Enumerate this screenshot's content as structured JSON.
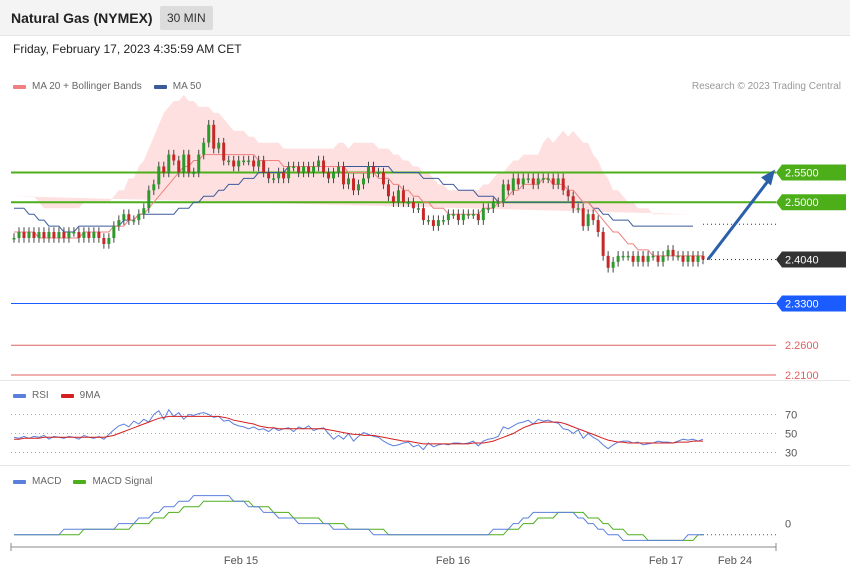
{
  "header": {
    "title": "Natural Gas (NYMEX)",
    "timeframe": "30 MIN"
  },
  "datetime": "Friday, February 17, 2023 4:35:59 AM CET",
  "credit": "Research © 2023 Trading Central",
  "colors": {
    "bollinger_fill": "#ffe0e0",
    "ma20": "#f08080",
    "ma50": "#3a5b9a",
    "candle_up": "#2e9a2e",
    "candle_down": "#c62828",
    "resistance": "#4caf1a",
    "support": "#1a5cff",
    "target": "#e06060",
    "arrow": "#2c5faa",
    "rsi": "#5b7fdd",
    "rsi_ma": "#d42020",
    "macd": "#5b7fdd",
    "macd_signal": "#4caf1a"
  },
  "legend": {
    "ma20": "MA 20 + Bollinger Bands",
    "ma50": "MA 50"
  },
  "levels": [
    {
      "value": 2.55,
      "label": "2.5500",
      "type": "resistance"
    },
    {
      "value": 2.5,
      "label": "2.5000",
      "type": "resistance"
    },
    {
      "value": 2.404,
      "label": "2.4040",
      "type": "last"
    },
    {
      "value": 2.33,
      "label": "2.3300",
      "type": "support"
    },
    {
      "value": 2.26,
      "label": "2.2600",
      "type": "target"
    },
    {
      "value": 2.21,
      "label": "2.2100",
      "type": "target"
    }
  ],
  "rsi_panel": {
    "legend_rsi": "RSI",
    "legend_ma": "9MA",
    "ticks": [
      "70",
      "50",
      "30"
    ]
  },
  "macd_panel": {
    "legend_macd": "MACD",
    "legend_signal": "MACD Signal",
    "ticks": [
      "0"
    ]
  },
  "chart_data": {
    "type": "candlestick",
    "x_ticks": [
      "Feb 15",
      "Feb 16",
      "Feb 17",
      "Feb 24"
    ],
    "y_range": [
      2.205,
      2.68
    ],
    "projection": {
      "from": 2.404,
      "to": 2.55
    },
    "closes": [
      2.44,
      2.45,
      2.44,
      2.45,
      2.44,
      2.45,
      2.44,
      2.45,
      2.44,
      2.45,
      2.44,
      2.45,
      2.45,
      2.44,
      2.45,
      2.44,
      2.45,
      2.44,
      2.43,
      2.44,
      2.46,
      2.47,
      2.48,
      2.47,
      2.47,
      2.48,
      2.49,
      2.52,
      2.53,
      2.56,
      2.55,
      2.58,
      2.57,
      2.55,
      2.58,
      2.55,
      2.55,
      2.58,
      2.6,
      2.63,
      2.59,
      2.6,
      2.57,
      2.57,
      2.56,
      2.57,
      2.57,
      2.57,
      2.56,
      2.57,
      2.55,
      2.54,
      2.54,
      2.55,
      2.54,
      2.56,
      2.56,
      2.55,
      2.56,
      2.55,
      2.56,
      2.57,
      2.55,
      2.54,
      2.55,
      2.56,
      2.53,
      2.54,
      2.52,
      2.53,
      2.54,
      2.56,
      2.55,
      2.55,
      2.53,
      2.51,
      2.5,
      2.52,
      2.5,
      2.5,
      2.49,
      2.49,
      2.47,
      2.47,
      2.46,
      2.47,
      2.47,
      2.48,
      2.48,
      2.47,
      2.48,
      2.48,
      2.48,
      2.47,
      2.49,
      2.49,
      2.5,
      2.5,
      2.53,
      2.52,
      2.54,
      2.53,
      2.54,
      2.54,
      2.53,
      2.54,
      2.54,
      2.54,
      2.53,
      2.54,
      2.52,
      2.51,
      2.49,
      2.49,
      2.46,
      2.48,
      2.47,
      2.45,
      2.41,
      2.39,
      2.4,
      2.41,
      2.41,
      2.41,
      2.4,
      2.41,
      2.4,
      2.41,
      2.41,
      2.4,
      2.41,
      2.42,
      2.41,
      2.41,
      2.4,
      2.41,
      2.4,
      2.41,
      2.404
    ],
    "ma50": [
      2.49,
      2.49,
      2.49,
      2.48,
      2.48,
      2.47,
      2.47,
      2.46,
      2.46,
      2.46,
      2.45,
      2.45,
      2.45,
      2.46,
      2.46,
      2.46,
      2.46,
      2.46,
      2.46,
      2.46,
      2.46,
      2.46,
      2.47,
      2.47,
      2.47,
      2.48,
      2.48,
      2.48,
      2.48,
      2.48,
      2.48,
      2.48,
      2.48,
      2.49,
      2.49,
      2.49,
      2.5,
      2.5,
      2.51,
      2.51,
      2.51,
      2.52,
      2.52,
      2.53,
      2.53,
      2.53,
      2.54,
      2.54,
      2.54,
      2.55,
      2.55,
      2.55,
      2.55,
      2.55,
      2.55,
      2.56,
      2.56,
      2.56,
      2.56,
      2.56,
      2.56,
      2.56,
      2.56,
      2.56,
      2.56,
      2.56,
      2.56,
      2.56,
      2.56,
      2.56,
      2.56,
      2.56,
      2.56,
      2.56,
      2.56,
      2.56,
      2.55,
      2.55,
      2.55,
      2.55,
      2.55,
      2.55,
      2.54,
      2.54,
      2.54,
      2.54,
      2.53,
      2.53,
      2.53,
      2.52,
      2.52,
      2.52,
      2.52,
      2.51,
      2.51,
      2.51,
      2.51,
      2.5,
      2.5,
      2.5,
      2.5,
      2.5,
      2.5,
      2.5,
      2.5,
      2.5,
      2.5,
      2.5,
      2.5,
      2.5,
      2.5,
      2.5,
      2.5,
      2.5,
      2.5,
      2.5,
      2.49,
      2.49,
      2.48,
      2.48,
      2.47,
      2.47,
      2.47,
      2.47,
      2.46,
      2.46,
      2.46,
      2.46,
      2.46,
      2.46,
      2.46,
      2.46,
      2.46,
      2.46,
      2.46,
      2.46,
      2.46
    ],
    "ma20": [
      2.45,
      2.45,
      2.45,
      2.45,
      2.45,
      2.44,
      2.44,
      2.44,
      2.44,
      2.44,
      2.44,
      2.44,
      2.44,
      2.44,
      2.45,
      2.45,
      2.45,
      2.45,
      2.45,
      2.45,
      2.46,
      2.46,
      2.46,
      2.47,
      2.47,
      2.48,
      2.48,
      2.49,
      2.5,
      2.51,
      2.52,
      2.53,
      2.54,
      2.55,
      2.56,
      2.56,
      2.57,
      2.57,
      2.58,
      2.58,
      2.58,
      2.58,
      2.58,
      2.58,
      2.58,
      2.58,
      2.58,
      2.58,
      2.58,
      2.57,
      2.57,
      2.57,
      2.57,
      2.57,
      2.56,
      2.56,
      2.56,
      2.56,
      2.56,
      2.56,
      2.56,
      2.56,
      2.56,
      2.56,
      2.56,
      2.56,
      2.56,
      2.55,
      2.55,
      2.55,
      2.55,
      2.55,
      2.55,
      2.54,
      2.54,
      2.54,
      2.53,
      2.53,
      2.52,
      2.52,
      2.51,
      2.51,
      2.5,
      2.5,
      2.49,
      2.49,
      2.49,
      2.48,
      2.48,
      2.48,
      2.48,
      2.48,
      2.48,
      2.48,
      2.49,
      2.49,
      2.49,
      2.5,
      2.5,
      2.51,
      2.52,
      2.52,
      2.53,
      2.53,
      2.53,
      2.53,
      2.54,
      2.54,
      2.53,
      2.53,
      2.53,
      2.52,
      2.52,
      2.51,
      2.5,
      2.5,
      2.49,
      2.48,
      2.47,
      2.46,
      2.45,
      2.45,
      2.44,
      2.43,
      2.43,
      2.42,
      2.42,
      2.42,
      2.41,
      2.41,
      2.41,
      2.41,
      2.41,
      2.41,
      2.41,
      2.41,
      2.41,
      2.41,
      2.41
    ],
    "bb_half_width": [
      0.06,
      0.06,
      0.06,
      0.06,
      0.06,
      0.06,
      0.05,
      0.05,
      0.05,
      0.05,
      0.05,
      0.05,
      0.05,
      0.05,
      0.05,
      0.05,
      0.05,
      0.05,
      0.05,
      0.05,
      0.05,
      0.06,
      0.06,
      0.07,
      0.07,
      0.08,
      0.09,
      0.1,
      0.11,
      0.12,
      0.13,
      0.13,
      0.13,
      0.12,
      0.12,
      0.11,
      0.1,
      0.09,
      0.08,
      0.08,
      0.07,
      0.07,
      0.06,
      0.05,
      0.04,
      0.04,
      0.04,
      0.03,
      0.03,
      0.03,
      0.03,
      0.03,
      0.03,
      0.03,
      0.03,
      0.03,
      0.03,
      0.03,
      0.03,
      0.03,
      0.03,
      0.03,
      0.03,
      0.03,
      0.03,
      0.04,
      0.04,
      0.04,
      0.05,
      0.05,
      0.05,
      0.05,
      0.05,
      0.05,
      0.05,
      0.05,
      0.05,
      0.05,
      0.05,
      0.05,
      0.05,
      0.05,
      0.05,
      0.05,
      0.05,
      0.04,
      0.04,
      0.04,
      0.04,
      0.04,
      0.04,
      0.04,
      0.04,
      0.04,
      0.04,
      0.04,
      0.05,
      0.05,
      0.05,
      0.05,
      0.05,
      0.05,
      0.05,
      0.05,
      0.05,
      0.05,
      0.06,
      0.07,
      0.07,
      0.08,
      0.09,
      0.09,
      0.1,
      0.1,
      0.1,
      0.1,
      0.09,
      0.09,
      0.08,
      0.08,
      0.07,
      0.07,
      0.07,
      0.07,
      0.07,
      0.07,
      0.07,
      0.07,
      0.07,
      0.07,
      0.07,
      0.07,
      0.07,
      0.07,
      0.07,
      0.07,
      0.07
    ],
    "rsi": [
      46,
      45,
      47,
      45,
      47,
      46,
      48,
      44,
      47,
      46,
      45,
      47,
      46,
      44,
      48,
      46,
      45,
      47,
      44,
      49,
      54,
      58,
      60,
      57,
      63,
      60,
      65,
      62,
      70,
      74,
      65,
      75,
      68,
      72,
      65,
      70,
      69,
      71,
      72,
      70,
      67,
      68,
      63,
      64,
      60,
      58,
      57,
      55,
      57,
      54,
      55,
      52,
      56,
      53,
      55,
      56,
      52,
      57,
      55,
      58,
      53,
      55,
      56,
      50,
      44,
      48,
      44,
      50,
      42,
      47,
      51,
      49,
      47,
      46,
      42,
      39,
      37,
      38,
      40,
      41,
      36,
      38,
      33,
      40,
      36,
      38,
      39,
      38,
      40,
      40,
      39,
      40,
      42,
      37,
      42,
      44,
      45,
      47,
      57,
      55,
      58,
      61,
      62,
      64,
      60,
      65,
      63,
      64,
      62,
      61,
      55,
      54,
      50,
      54,
      45,
      50,
      46,
      43,
      38,
      34,
      38,
      41,
      42,
      42,
      40,
      41,
      38,
      39,
      40,
      42,
      41,
      41,
      40,
      42,
      44,
      43,
      44,
      42,
      44
    ],
    "rsi_ma": [
      44,
      44,
      45,
      45,
      45,
      45,
      46,
      46,
      46,
      46,
      46,
      46,
      46,
      46,
      46,
      46,
      46,
      46,
      46,
      47,
      48,
      50,
      52,
      54,
      56,
      58,
      60,
      62,
      64,
      66,
      67,
      68,
      68,
      68,
      68,
      68,
      68,
      68,
      68,
      68,
      68,
      68,
      67,
      66,
      64,
      63,
      62,
      61,
      60,
      58,
      57,
      56,
      56,
      55,
      55,
      55,
      55,
      55,
      55,
      55,
      55,
      55,
      55,
      54,
      53,
      52,
      51,
      50,
      49,
      49,
      48,
      48,
      48,
      47,
      46,
      45,
      44,
      43,
      42,
      42,
      41,
      40,
      39,
      39,
      39,
      39,
      39,
      39,
      39,
      39,
      39,
      39,
      40,
      40,
      40,
      41,
      42,
      44,
      46,
      48,
      50,
      53,
      56,
      58,
      60,
      61,
      62,
      62,
      62,
      62,
      61,
      59,
      57,
      55,
      53,
      51,
      49,
      47,
      45,
      43,
      42,
      41,
      41,
      40,
      40,
      40,
      40,
      40,
      40,
      40,
      40,
      40,
      40,
      41,
      41,
      41,
      42,
      42,
      42
    ],
    "macd": [
      -0.02,
      -0.02,
      -0.02,
      -0.02,
      -0.02,
      -0.02,
      -0.02,
      -0.02,
      -0.02,
      -0.02,
      -0.01,
      -0.01,
      -0.01,
      -0.01,
      -0.01,
      -0.01,
      -0.01,
      -0.01,
      -0.01,
      -0.01,
      -0.01,
      0,
      0,
      0,
      0,
      0.01,
      0.01,
      0.01,
      0.02,
      0.02,
      0.03,
      0.03,
      0.03,
      0.04,
      0.04,
      0.04,
      0.05,
      0.05,
      0.05,
      0.05,
      0.05,
      0.05,
      0.05,
      0.05,
      0.04,
      0.04,
      0.04,
      0.03,
      0.03,
      0.03,
      0.02,
      0.02,
      0.02,
      0.01,
      0.01,
      0.01,
      0.01,
      0,
      0,
      0,
      0,
      0,
      0,
      0,
      -0.01,
      -0.01,
      -0.01,
      -0.01,
      -0.01,
      -0.01,
      -0.01,
      -0.01,
      -0.02,
      -0.02,
      -0.02,
      -0.02,
      -0.02,
      -0.02,
      -0.02,
      -0.02,
      -0.02,
      -0.02,
      -0.02,
      -0.02,
      -0.02,
      -0.02,
      -0.02,
      -0.02,
      -0.02,
      -0.02,
      -0.02,
      -0.02,
      -0.02,
      -0.02,
      -0.02,
      -0.02,
      -0.01,
      -0.01,
      -0.01,
      -0.01,
      0,
      0,
      0.01,
      0.01,
      0.02,
      0.02,
      0.02,
      0.02,
      0.02,
      0.02,
      0.02,
      0.02,
      0.02,
      0.01,
      0.01,
      0,
      0,
      -0.01,
      -0.01,
      -0.02,
      -0.02,
      -0.02,
      -0.03,
      -0.03,
      -0.03,
      -0.03,
      -0.03,
      -0.03,
      -0.03,
      -0.03,
      -0.03,
      -0.03,
      -0.03,
      -0.03,
      -0.03,
      -0.02,
      -0.02,
      -0.02,
      -0.02
    ],
    "macd_signal": [
      -0.02,
      -0.02,
      -0.02,
      -0.02,
      -0.02,
      -0.02,
      -0.02,
      -0.02,
      -0.02,
      -0.02,
      -0.02,
      -0.02,
      -0.02,
      -0.02,
      -0.01,
      -0.01,
      -0.01,
      -0.01,
      -0.01,
      -0.01,
      -0.01,
      -0.01,
      -0.01,
      -0.01,
      0,
      0,
      0,
      0,
      0.01,
      0.01,
      0.01,
      0.02,
      0.02,
      0.02,
      0.03,
      0.03,
      0.03,
      0.03,
      0.04,
      0.04,
      0.04,
      0.04,
      0.04,
      0.04,
      0.04,
      0.04,
      0.04,
      0.04,
      0.03,
      0.03,
      0.03,
      0.03,
      0.02,
      0.02,
      0.02,
      0.02,
      0.01,
      0.01,
      0.01,
      0.01,
      0.01,
      0.01,
      0,
      0,
      0,
      0,
      0,
      -0.01,
      -0.01,
      -0.01,
      -0.01,
      -0.01,
      -0.01,
      -0.01,
      -0.01,
      -0.02,
      -0.02,
      -0.02,
      -0.02,
      -0.02,
      -0.02,
      -0.02,
      -0.02,
      -0.02,
      -0.02,
      -0.02,
      -0.02,
      -0.02,
      -0.02,
      -0.02,
      -0.02,
      -0.02,
      -0.02,
      -0.02,
      -0.02,
      -0.02,
      -0.02,
      -0.02,
      -0.02,
      -0.01,
      -0.01,
      -0.01,
      0,
      0,
      0,
      0.01,
      0.01,
      0.01,
      0.01,
      0.02,
      0.02,
      0.02,
      0.02,
      0.02,
      0.02,
      0.01,
      0.01,
      0.01,
      0,
      0,
      -0.01,
      -0.01,
      -0.01,
      -0.02,
      -0.02,
      -0.02,
      -0.02,
      -0.03,
      -0.03,
      -0.03,
      -0.03,
      -0.03,
      -0.03,
      -0.03,
      -0.03,
      -0.03,
      -0.03,
      -0.02,
      -0.02
    ]
  }
}
